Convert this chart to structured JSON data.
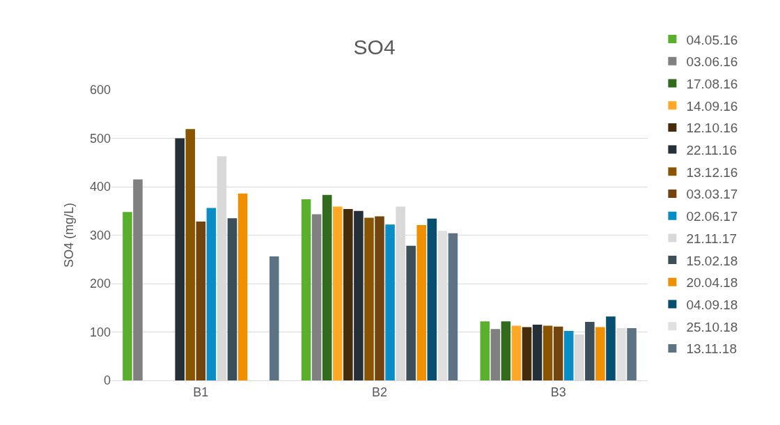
{
  "chart_data": {
    "type": "bar",
    "title": "SO4",
    "ylabel": "SO4 (mg/L)",
    "categories": [
      "B1",
      "B2",
      "B3"
    ],
    "series": [
      {
        "name": "04.05.16",
        "color": "#5aaf2d",
        "values": [
          348,
          374,
          122
        ]
      },
      {
        "name": "03.06.16",
        "color": "#808080",
        "values": [
          415,
          343,
          106
        ]
      },
      {
        "name": "17.08.16",
        "color": "#336b1c",
        "values": [
          null,
          383,
          122
        ]
      },
      {
        "name": "14.09.16",
        "color": "#ffa726",
        "values": [
          null,
          359,
          113
        ]
      },
      {
        "name": "12.10.16",
        "color": "#472c0b",
        "values": [
          null,
          354,
          110
        ]
      },
      {
        "name": "22.11.16",
        "color": "#252f38",
        "values": [
          500,
          350,
          115
        ]
      },
      {
        "name": "13.12.16",
        "color": "#8a5500",
        "values": [
          519,
          336,
          113
        ]
      },
      {
        "name": "03.03.17",
        "color": "#73440d",
        "values": [
          328,
          339,
          111
        ]
      },
      {
        "name": "02.06.17",
        "color": "#0a8cc4",
        "values": [
          356,
          322,
          102
        ]
      },
      {
        "name": "21.11.17",
        "color": "#d9d9d9",
        "values": [
          463,
          359,
          95
        ]
      },
      {
        "name": "15.02.18",
        "color": "#3d4e5b",
        "values": [
          335,
          278,
          121
        ]
      },
      {
        "name": "20.04.18",
        "color": "#ee9000",
        "values": [
          386,
          321,
          110
        ]
      },
      {
        "name": "04.09.18",
        "color": "#064f71",
        "values": [
          null,
          334,
          132
        ]
      },
      {
        "name": "25.10.18",
        "color": "#e0e0e0",
        "values": [
          null,
          309,
          108
        ]
      },
      {
        "name": "13.11.18",
        "color": "#5c7384",
        "values": [
          256,
          304,
          108
        ]
      }
    ],
    "ylim": [
      0,
      600
    ],
    "yticks": [
      0,
      100,
      200,
      300,
      400,
      500,
      600
    ],
    "grid": "y",
    "legend": "right"
  }
}
